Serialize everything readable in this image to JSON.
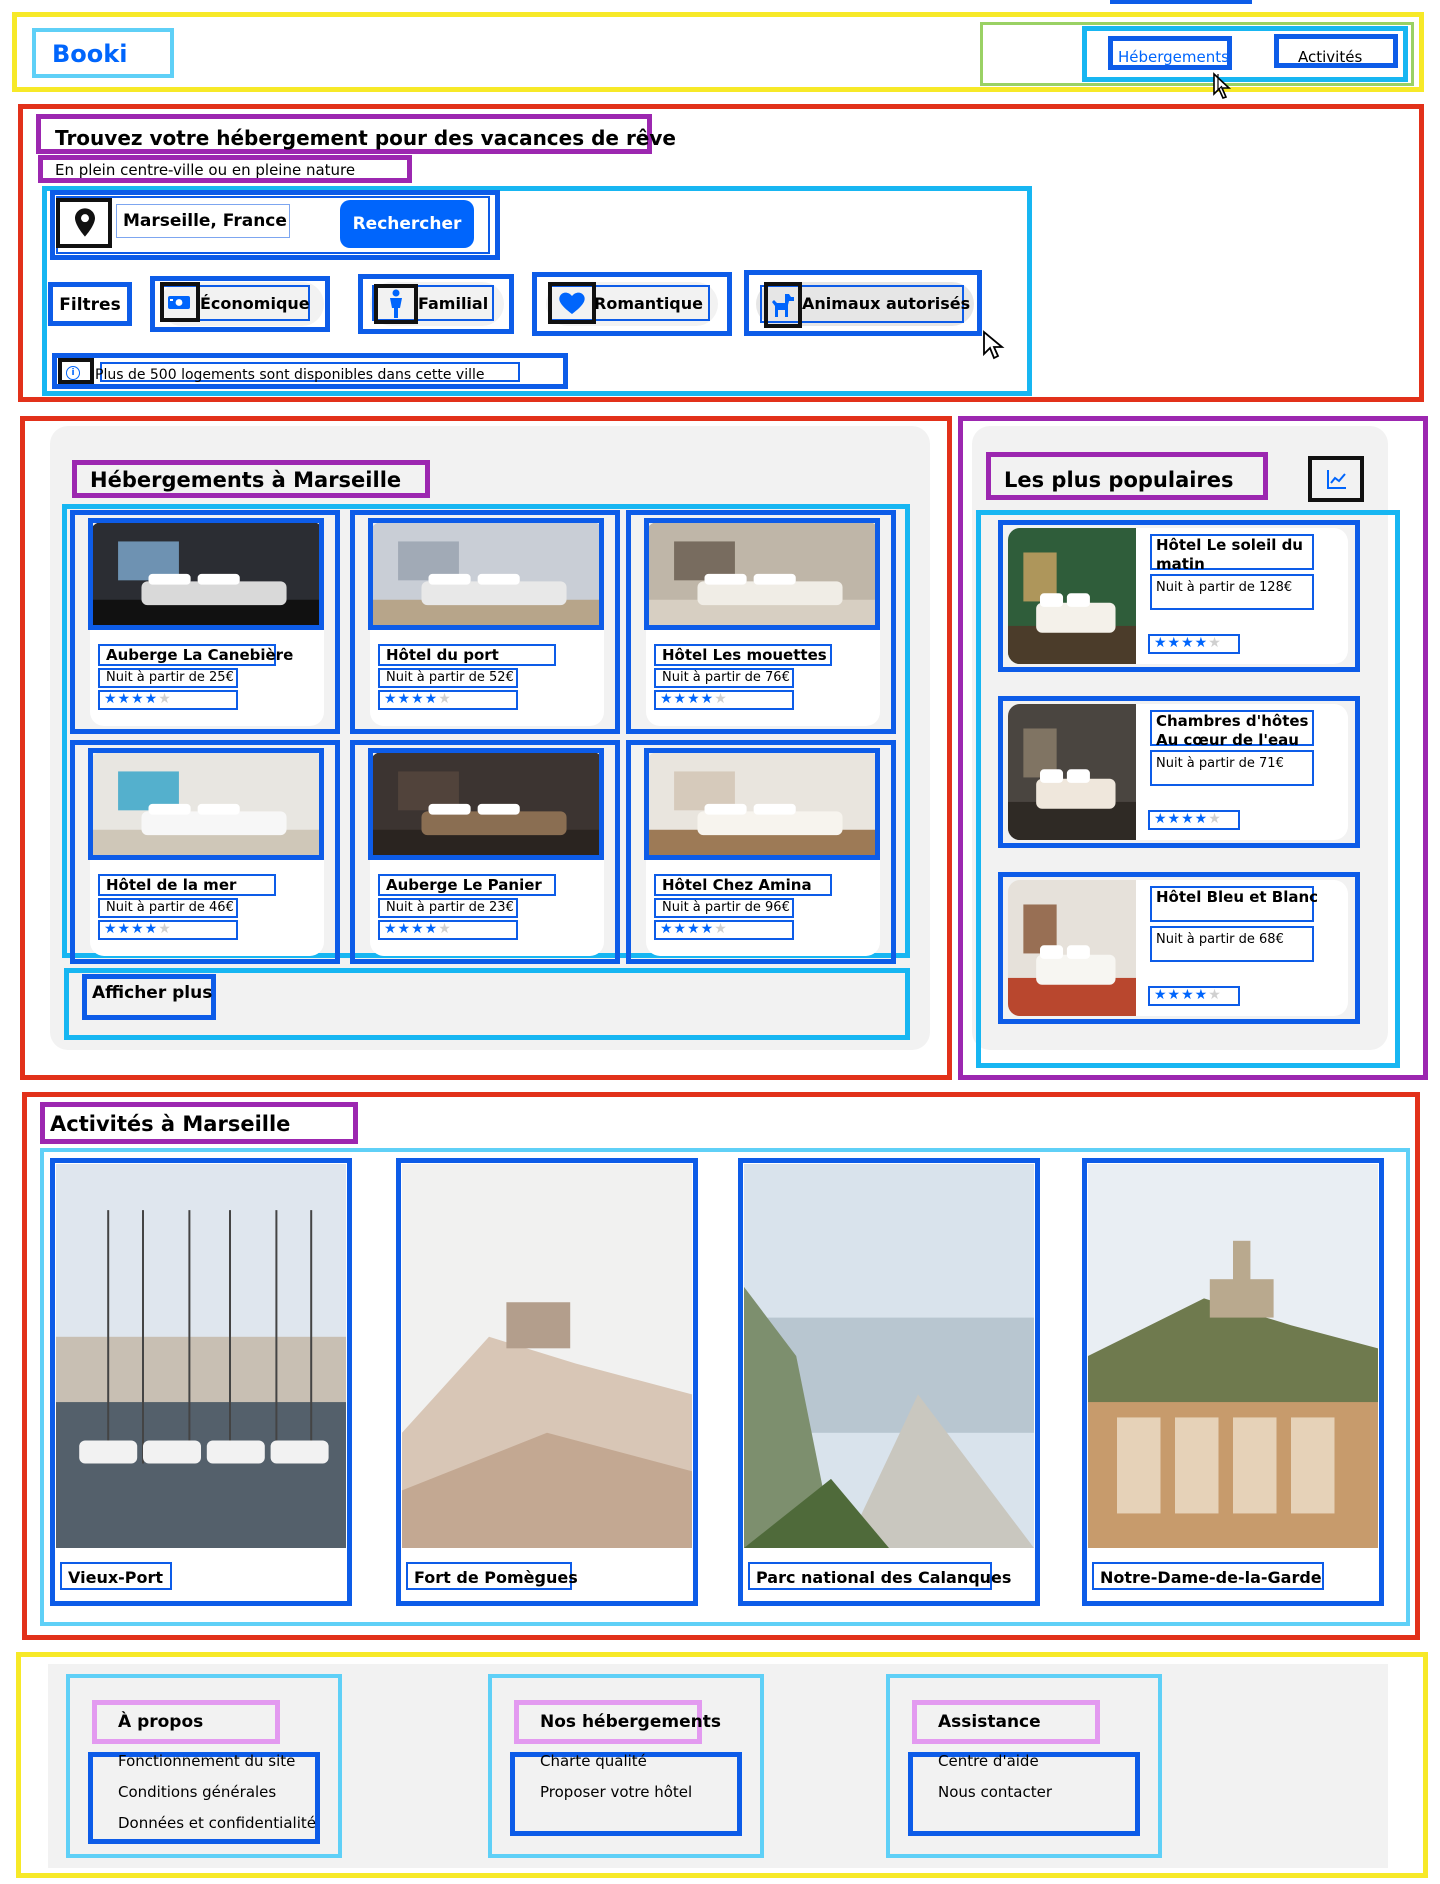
{
  "header": {
    "logo": "Booki",
    "nav": [
      {
        "label": "Hébergements"
      },
      {
        "label": "Activités"
      }
    ]
  },
  "hero": {
    "title": "Trouvez votre hébergement pour des vacances de rêve",
    "subtitle": "En plein centre-ville ou en pleine nature",
    "search": {
      "location": "Marseille, France",
      "button": "Rechercher"
    },
    "filters_label": "Filtres",
    "filters": [
      {
        "label": "Économique",
        "icon": "money-icon"
      },
      {
        "label": "Familial",
        "icon": "child-icon"
      },
      {
        "label": "Romantique",
        "icon": "heart-icon"
      },
      {
        "label": "Animaux autorisés",
        "icon": "dog-icon"
      }
    ],
    "info": "Plus de 500 logements sont disponibles dans cette ville"
  },
  "lodgings": {
    "title": "Hébergements à Marseille",
    "items": [
      {
        "name": "Auberge La Canebière",
        "price": "Nuit à partir de 25€",
        "rating": 4
      },
      {
        "name": "Hôtel du port",
        "price": "Nuit à partir de 52€",
        "rating": 4
      },
      {
        "name": "Hôtel Les mouettes",
        "price": "Nuit à partir de 76€",
        "rating": 4
      },
      {
        "name": "Hôtel de la mer",
        "price": "Nuit à partir de 46€",
        "rating": 4
      },
      {
        "name": "Auberge Le Panier",
        "price": "Nuit à partir de 23€",
        "rating": 4
      },
      {
        "name": "Hôtel Chez Amina",
        "price": "Nuit à partir de 96€",
        "rating": 4
      }
    ],
    "more": "Afficher plus"
  },
  "popular": {
    "title": "Les plus populaires",
    "icon": "trend-chart-icon",
    "items": [
      {
        "name": "Hôtel Le soleil du matin",
        "price": "Nuit à partir de 128€",
        "rating": 4
      },
      {
        "name": "Chambres d'hôtes Au cœur de l'eau",
        "price": "Nuit à partir de 71€",
        "rating": 4
      },
      {
        "name": "Hôtel Bleu et Blanc",
        "price": "Nuit à partir de 68€",
        "rating": 4
      }
    ]
  },
  "activities": {
    "title": "Activités à Marseille",
    "items": [
      {
        "name": "Vieux-Port"
      },
      {
        "name": "Fort de Pomègues"
      },
      {
        "name": "Parc national des Calanques"
      },
      {
        "name": "Notre-Dame-de-la-Garde"
      }
    ]
  },
  "footer": {
    "columns": [
      {
        "title": "À propos",
        "links": [
          "Fonctionnement du site",
          "Conditions générales",
          "Données et confidentialité"
        ]
      },
      {
        "title": "Nos hébergements",
        "links": [
          "Charte qualité",
          "Proposer votre hôtel"
        ]
      },
      {
        "title": "Assistance",
        "links": [
          "Centre d'aide",
          "Nous contacter"
        ]
      }
    ]
  },
  "colors": {
    "accent": "#0065fc",
    "panel": "#f2f2f2"
  }
}
